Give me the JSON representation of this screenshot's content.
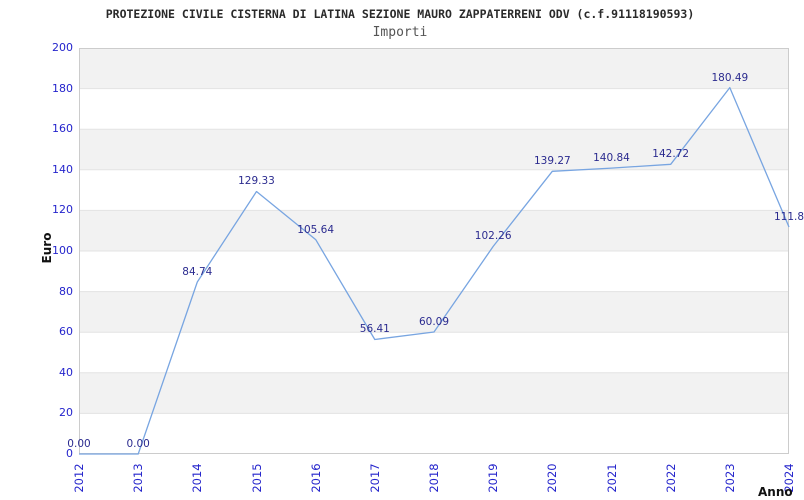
{
  "chart_data": {
    "type": "line",
    "title": "PROTEZIONE CIVILE CISTERNA DI LATINA SEZIONE MAURO ZAPPATERRENI ODV (c.f.91118190593)",
    "subtitle": "Importi",
    "xlabel": "Anno",
    "ylabel": "Euro",
    "categories": [
      "2012",
      "2013",
      "2014",
      "2015",
      "2016",
      "2017",
      "2018",
      "2019",
      "2020",
      "2021",
      "2022",
      "2023",
      "2024"
    ],
    "values": [
      0.0,
      0.0,
      84.74,
      129.33,
      105.64,
      56.41,
      60.09,
      102.26,
      139.27,
      140.84,
      142.72,
      180.49,
      111.8
    ],
    "point_labels": [
      "0.00",
      "0.00",
      "84.74",
      "129.33",
      "105.64",
      "56.41",
      "60.09",
      "102.26",
      "139.27",
      "140.84",
      "142.72",
      "180.49",
      "111.8"
    ],
    "ylim": [
      0,
      200
    ],
    "ytick_step": 20,
    "ytick_labels": [
      "0",
      "20",
      "40",
      "60",
      "80",
      "100",
      "120",
      "140",
      "160",
      "180",
      "200"
    ],
    "grid": true,
    "legend": "none",
    "band_fill": "alternating-horizontal",
    "colors": {
      "line": "#78a5e1",
      "tick_label": "#2424cc",
      "point_label": "#2b2b8f",
      "band_gray": "#f2f2f2",
      "band_white": "#ffffff",
      "grid_line": "#e3e3e3",
      "plot_border": "#cccccc",
      "title": "#2a2a2a",
      "subtitle": "#555555",
      "axis_title": "#111111"
    }
  }
}
